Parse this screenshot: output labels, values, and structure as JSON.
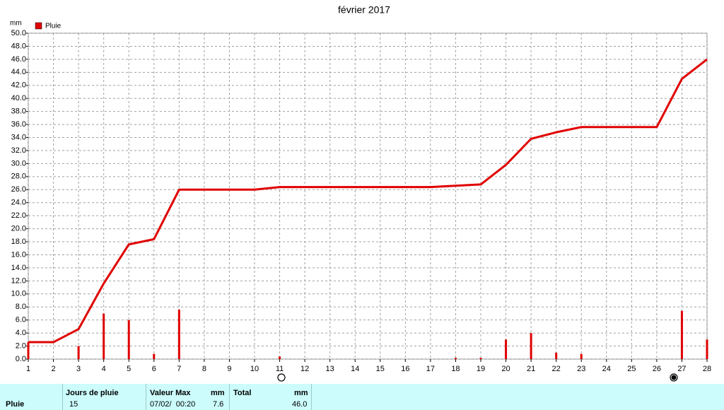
{
  "chart_data": {
    "type": "bar",
    "title": "février 2017",
    "y_label": "mm",
    "x": [
      1,
      2,
      3,
      4,
      5,
      6,
      7,
      8,
      9,
      10,
      11,
      12,
      13,
      14,
      15,
      16,
      17,
      18,
      19,
      20,
      21,
      22,
      23,
      24,
      25,
      26,
      27,
      28
    ],
    "xlim": [
      1,
      28
    ],
    "xticks": [
      1,
      2,
      3,
      4,
      5,
      6,
      7,
      8,
      9,
      10,
      11,
      12,
      13,
      14,
      15,
      16,
      17,
      18,
      19,
      20,
      21,
      22,
      23,
      24,
      25,
      26,
      27,
      28
    ],
    "ylim": [
      0,
      50
    ],
    "yticks": [
      {
        "value": 0,
        "label": "0.0"
      },
      {
        "value": 2,
        "label": "2.0"
      },
      {
        "value": 4,
        "label": "4.0"
      },
      {
        "value": 6,
        "label": "6.0"
      },
      {
        "value": 8,
        "label": "8.0"
      },
      {
        "value": 10,
        "label": "10.0"
      },
      {
        "value": 12,
        "label": "12.0"
      },
      {
        "value": 14,
        "label": "14.0"
      },
      {
        "value": 16,
        "label": "16.0"
      },
      {
        "value": 18,
        "label": "18.0"
      },
      {
        "value": 20,
        "label": "20.0"
      },
      {
        "value": 22,
        "label": "22.0"
      },
      {
        "value": 24,
        "label": "24.0"
      },
      {
        "value": 26,
        "label": "26.0"
      },
      {
        "value": 28,
        "label": "28.0"
      },
      {
        "value": 30,
        "label": "30.0"
      },
      {
        "value": 32,
        "label": "32.0"
      },
      {
        "value": 34,
        "label": "34.0"
      },
      {
        "value": 36,
        "label": "36.0"
      },
      {
        "value": 38,
        "label": "38.0"
      },
      {
        "value": 40,
        "label": "40.0"
      },
      {
        "value": 42,
        "label": "42.0"
      },
      {
        "value": 44,
        "label": "44.0"
      },
      {
        "value": 46,
        "label": "46.0"
      },
      {
        "value": 48,
        "label": "48.0"
      },
      {
        "value": 50,
        "label": "50.0"
      }
    ],
    "grid": true,
    "legend": "top-left",
    "series": [
      {
        "name": "Pluie",
        "type": "bar",
        "color": "#e00000",
        "values": [
          2.6,
          0,
          2.0,
          7.0,
          6.0,
          0.8,
          7.6,
          0,
          0,
          0,
          0.4,
          0,
          0,
          0,
          0,
          0,
          0,
          0.2,
          0.2,
          3.0,
          4.0,
          1.0,
          0.8,
          0,
          0,
          0,
          7.4,
          3.0
        ]
      },
      {
        "type": "line",
        "color": "#e00000",
        "values": [
          2.6,
          2.6,
          4.6,
          11.6,
          17.6,
          18.4,
          26.0,
          26.0,
          26.0,
          26.0,
          26.4,
          26.4,
          26.4,
          26.4,
          26.4,
          26.4,
          26.4,
          26.6,
          26.8,
          29.8,
          33.8,
          34.8,
          35.6,
          35.6,
          35.6,
          35.6,
          43.0,
          46.0
        ]
      }
    ]
  },
  "summary": {
    "row_label": "Pluie",
    "days_header": "Jours de pluie",
    "days": "15",
    "max_header": "Valeur Max",
    "max_unit": "mm",
    "max_date": "07/02/  00:20",
    "max_value": "7.6",
    "total_header": "Total",
    "total_unit": "mm",
    "total_value": "46.0"
  }
}
